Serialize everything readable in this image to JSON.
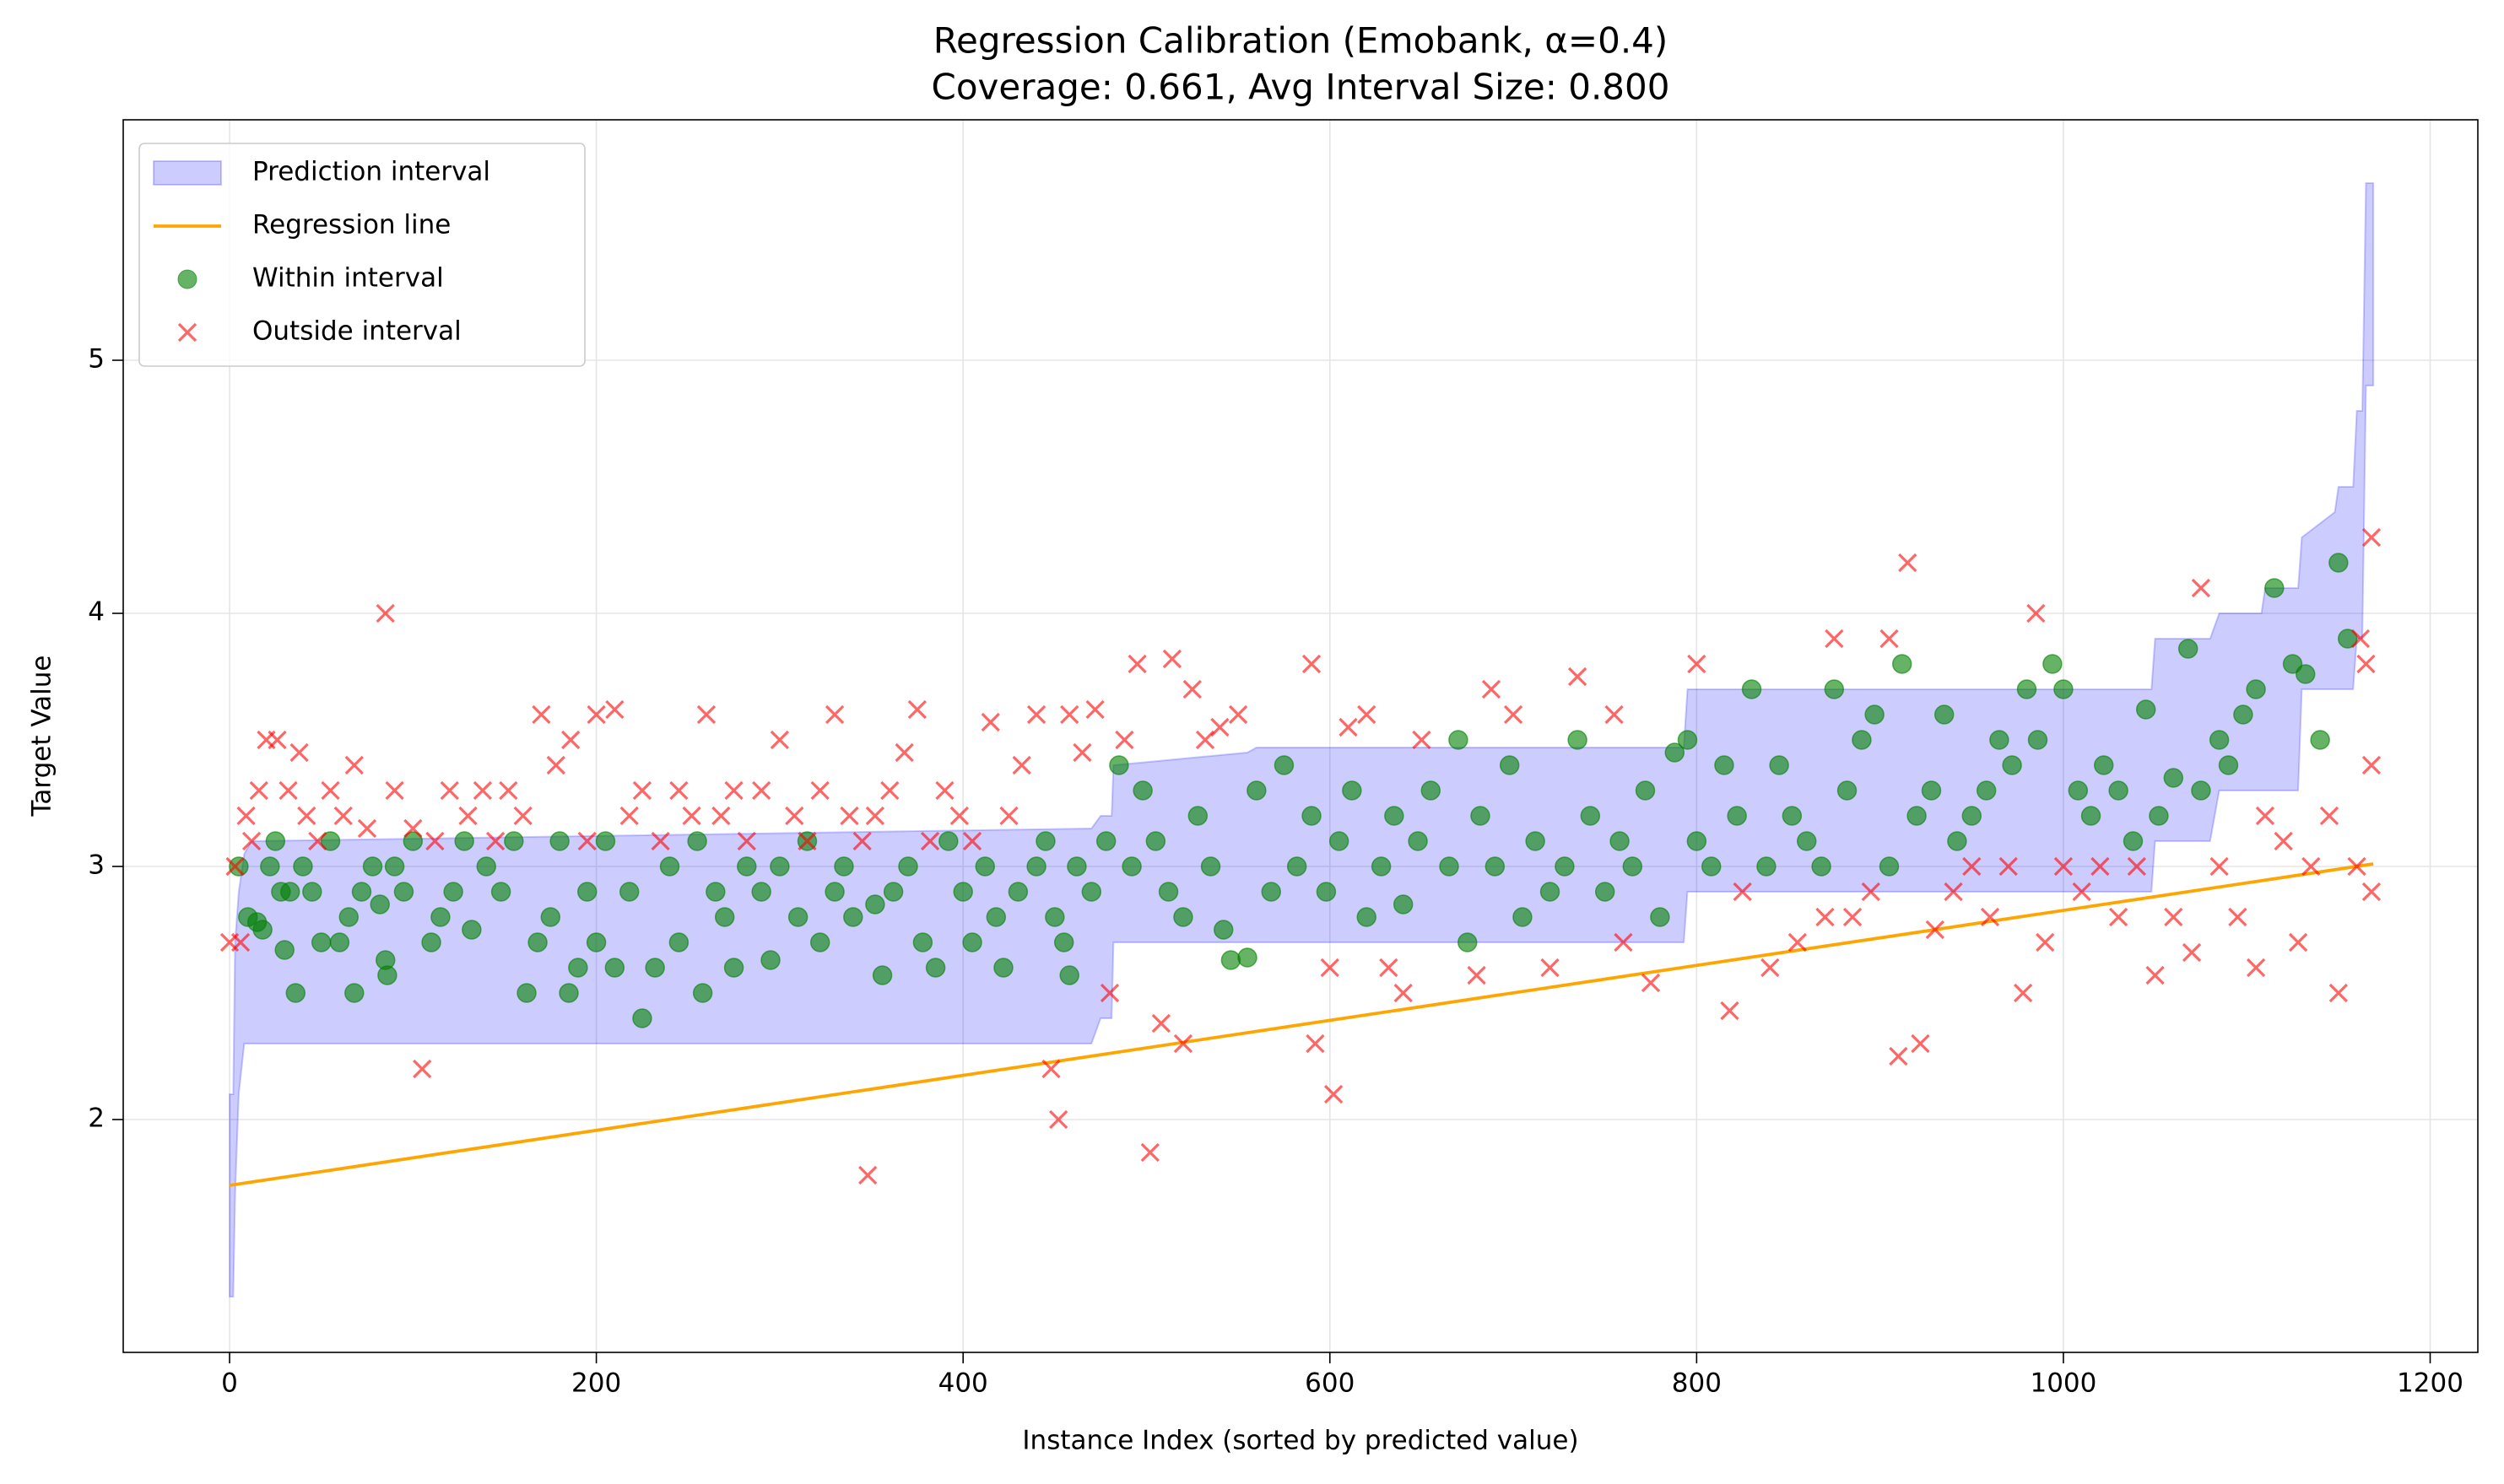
{
  "chart_data": {
    "type": "scatter",
    "title": "Regression Calibration (Emobank, α=0.4)",
    "subtitle": "Coverage: 0.661, Avg Interval Size: 0.800",
    "xlabel": "Instance Index (sorted by predicted value)",
    "ylabel": "Target Value",
    "xlim": [
      -58,
      1226
    ],
    "ylim": [
      1.08,
      5.95
    ],
    "xticks": [
      0,
      200,
      400,
      600,
      800,
      1000,
      1200
    ],
    "yticks": [
      2,
      3,
      4,
      5
    ],
    "grid": true,
    "legend": "upper left",
    "band": {
      "name": "Prediction interval",
      "color": "#0000ff",
      "x": [
        0,
        2,
        3,
        5,
        8,
        12,
        470,
        475,
        481,
        482,
        555,
        560,
        793,
        795,
        1048,
        1050,
        1080,
        1085,
        1108,
        1110,
        1128,
        1130,
        1148,
        1150,
        1158,
        1160,
        1163,
        1165,
        1169
      ],
      "lower": [
        1.3,
        1.3,
        1.7,
        2.1,
        2.3,
        2.3,
        2.3,
        2.4,
        2.4,
        2.7,
        2.7,
        2.7,
        2.7,
        2.9,
        2.9,
        3.1,
        3.1,
        3.3,
        3.3,
        3.3,
        3.3,
        3.7,
        3.7,
        3.7,
        3.7,
        3.9,
        3.9,
        4.9,
        4.9
      ],
      "upper": [
        2.1,
        2.1,
        2.7,
        2.9,
        3.05,
        3.1,
        3.15,
        3.2,
        3.2,
        3.4,
        3.45,
        3.47,
        3.47,
        3.7,
        3.7,
        3.9,
        3.9,
        4.0,
        4.0,
        4.1,
        4.1,
        4.3,
        4.4,
        4.5,
        4.5,
        4.8,
        4.8,
        5.7,
        5.7
      ]
    },
    "line": {
      "name": "Regression line",
      "color": "#ffa500",
      "x": [
        0,
        1169
      ],
      "values": [
        1.74,
        3.01
      ]
    },
    "series": [
      {
        "name": "Within interval",
        "color": "#008000",
        "marker": "o",
        "x": [
          5,
          10,
          15,
          18,
          22,
          25,
          28,
          30,
          33,
          36,
          40,
          45,
          50,
          55,
          60,
          65,
          68,
          72,
          78,
          82,
          85,
          86,
          90,
          95,
          100,
          110,
          115,
          122,
          128,
          132,
          140,
          148,
          155,
          162,
          168,
          175,
          180,
          185,
          190,
          195,
          200,
          205,
          210,
          218,
          225,
          232,
          240,
          245,
          255,
          258,
          265,
          270,
          275,
          282,
          290,
          295,
          300,
          310,
          315,
          322,
          330,
          335,
          340,
          352,
          356,
          362,
          370,
          378,
          385,
          392,
          400,
          405,
          412,
          418,
          422,
          430,
          440,
          445,
          450,
          455,
          458,
          462,
          470,
          478,
          485,
          492,
          498,
          505,
          512,
          520,
          528,
          535,
          542,
          546,
          555,
          560,
          568,
          575,
          582,
          590,
          598,
          605,
          612,
          620,
          628,
          635,
          640,
          648,
          655,
          665,
          670,
          675,
          682,
          690,
          698,
          705,
          712,
          720,
          728,
          735,
          742,
          750,
          758,
          765,
          772,
          780,
          788,
          795,
          800,
          808,
          815,
          822,
          830,
          838,
          845,
          852,
          860,
          868,
          875,
          882,
          890,
          897,
          905,
          912,
          920,
          928,
          935,
          942,
          950,
          958,
          965,
          972,
          980,
          986,
          994,
          1000,
          1008,
          1015,
          1022,
          1030,
          1038,
          1045,
          1052,
          1060,
          1068,
          1075,
          1085,
          1090,
          1098,
          1105,
          1115,
          1125,
          1132,
          1140,
          1150,
          1155
        ],
        "values": [
          3.0,
          2.8,
          2.78,
          2.75,
          3.0,
          3.1,
          2.9,
          2.67,
          2.9,
          2.5,
          3.0,
          2.9,
          2.7,
          3.1,
          2.7,
          2.8,
          2.5,
          2.9,
          3.0,
          2.85,
          2.63,
          2.57,
          3.0,
          2.9,
          3.1,
          2.7,
          2.8,
          2.9,
          3.1,
          2.75,
          3.0,
          2.9,
          3.1,
          2.5,
          2.7,
          2.8,
          3.1,
          2.5,
          2.6,
          2.9,
          2.7,
          3.1,
          2.6,
          2.9,
          2.4,
          2.6,
          3.0,
          2.7,
          3.1,
          2.5,
          2.9,
          2.8,
          2.6,
          3.0,
          2.9,
          2.63,
          3.0,
          2.8,
          3.1,
          2.7,
          2.9,
          3.0,
          2.8,
          2.85,
          2.57,
          2.9,
          3.0,
          2.7,
          2.6,
          3.1,
          2.9,
          2.7,
          3.0,
          2.8,
          2.6,
          2.9,
          3.0,
          3.1,
          2.8,
          2.7,
          2.57,
          3.0,
          2.9,
          3.1,
          3.4,
          3.0,
          3.3,
          3.1,
          2.9,
          2.8,
          3.2,
          3.0,
          2.75,
          2.63,
          2.64,
          3.3,
          2.9,
          3.4,
          3.0,
          3.2,
          2.9,
          3.1,
          3.3,
          2.8,
          3.0,
          3.2,
          2.85,
          3.1,
          3.3,
          3.0,
          3.5,
          2.7,
          3.2,
          3.0,
          3.4,
          2.8,
          3.1,
          2.9,
          3.0,
          3.5,
          3.2,
          2.9,
          3.1,
          3.0,
          3.3,
          2.8,
          3.45,
          3.5,
          3.1,
          3.0,
          3.4,
          3.2,
          3.7,
          3.0,
          3.4,
          3.2,
          3.1,
          3.0,
          3.7,
          3.3,
          3.5,
          3.6,
          3.0,
          3.8,
          3.2,
          3.3,
          3.6,
          3.1,
          3.2,
          3.3,
          3.5,
          3.4,
          3.7,
          3.5,
          3.8,
          3.7,
          3.3,
          3.2,
          3.4,
          3.3,
          3.1,
          3.62,
          3.2,
          3.35,
          3.86,
          3.3,
          3.5,
          3.4,
          3.6,
          3.7,
          4.1,
          3.8,
          3.76,
          3.5,
          4.2,
          3.9
        ]
      },
      {
        "name": "Outside interval",
        "color": "#ff0000",
        "marker": "x",
        "x": [
          0,
          3,
          6,
          9,
          12,
          16,
          20,
          26,
          32,
          38,
          42,
          48,
          55,
          62,
          68,
          75,
          85,
          90,
          100,
          105,
          112,
          120,
          130,
          138,
          145,
          152,
          160,
          170,
          178,
          186,
          195,
          200,
          210,
          218,
          225,
          235,
          245,
          252,
          260,
          268,
          275,
          282,
          290,
          300,
          308,
          315,
          322,
          330,
          338,
          345,
          348,
          352,
          360,
          368,
          375,
          382,
          390,
          398,
          405,
          415,
          425,
          432,
          440,
          448,
          452,
          458,
          465,
          472,
          480,
          488,
          495,
          502,
          508,
          514,
          520,
          525,
          532,
          540,
          550,
          590,
          592,
          600,
          602,
          610,
          620,
          632,
          640,
          650,
          680,
          688,
          700,
          720,
          735,
          755,
          760,
          775,
          800,
          818,
          825,
          840,
          855,
          870,
          875,
          885,
          895,
          905,
          910,
          915,
          922,
          930,
          940,
          950,
          960,
          970,
          978,
          985,
          990,
          1000,
          1010,
          1020,
          1030,
          1040,
          1050,
          1060,
          1070,
          1075,
          1085,
          1095,
          1105,
          1110,
          1120,
          1128,
          1135,
          1145,
          1150,
          1160,
          1162,
          1165,
          1168,
          1168,
          1168
        ],
        "values": [
          2.7,
          3.0,
          2.7,
          3.2,
          3.1,
          3.3,
          3.5,
          3.5,
          3.3,
          3.45,
          3.2,
          3.1,
          3.3,
          3.2,
          3.4,
          3.15,
          4.0,
          3.3,
          3.15,
          2.2,
          3.1,
          3.3,
          3.2,
          3.3,
          3.1,
          3.3,
          3.2,
          3.6,
          3.4,
          3.5,
          3.1,
          3.6,
          3.62,
          3.2,
          3.3,
          3.1,
          3.3,
          3.2,
          3.6,
          3.2,
          3.3,
          3.1,
          3.3,
          3.5,
          3.2,
          3.1,
          3.3,
          3.6,
          3.2,
          3.1,
          1.78,
          3.2,
          3.3,
          3.45,
          3.62,
          3.1,
          3.3,
          3.2,
          3.1,
          3.57,
          3.2,
          3.4,
          3.6,
          2.2,
          2.0,
          3.6,
          3.45,
          3.62,
          2.5,
          3.5,
          3.8,
          1.87,
          2.38,
          3.82,
          2.3,
          3.7,
          3.5,
          3.55,
          3.6,
          3.8,
          2.3,
          2.6,
          2.1,
          3.55,
          3.6,
          2.6,
          2.5,
          3.5,
          2.57,
          3.7,
          3.6,
          2.6,
          3.75,
          3.6,
          2.7,
          2.54,
          3.8,
          2.43,
          2.9,
          2.6,
          2.7,
          2.8,
          3.9,
          2.8,
          2.9,
          3.9,
          2.25,
          4.2,
          2.3,
          2.75,
          2.9,
          3.0,
          2.8,
          3.0,
          2.5,
          4.0,
          2.7,
          3.0,
          2.9,
          3.0,
          2.8,
          3.0,
          2.57,
          2.8,
          2.66,
          4.1,
          3.0,
          2.8,
          2.6,
          3.2,
          3.1,
          2.7,
          3.0,
          3.2,
          2.5,
          3.0,
          3.9,
          3.8,
          4.3,
          3.4,
          2.9
        ]
      }
    ]
  }
}
